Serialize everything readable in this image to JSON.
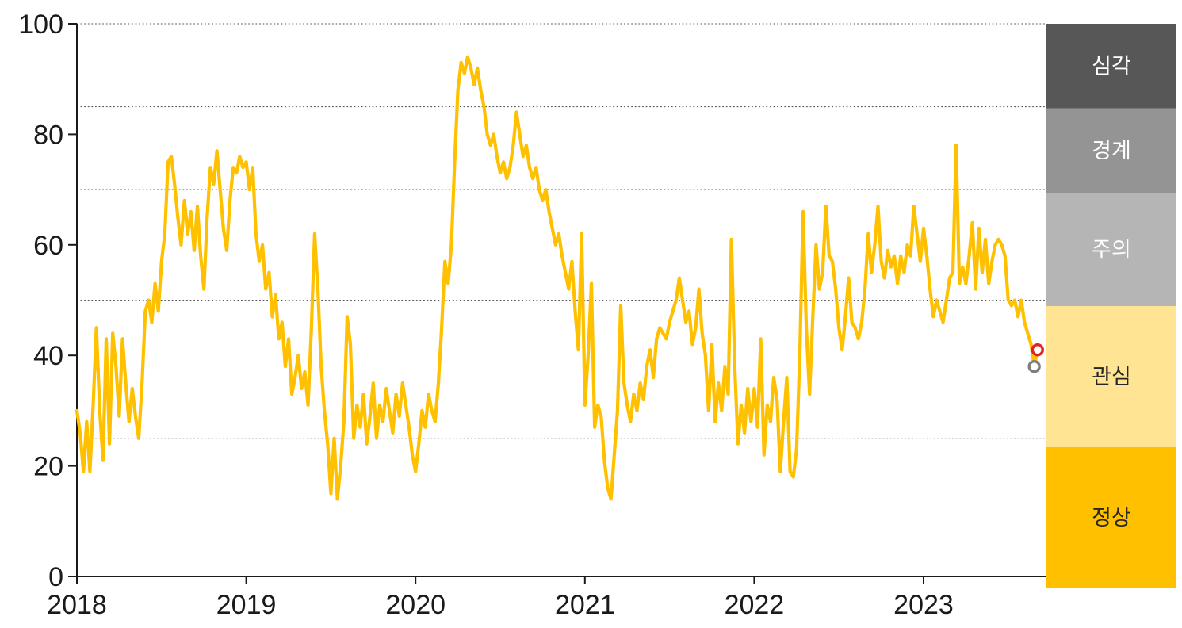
{
  "chart_data": {
    "type": "line",
    "title": "",
    "x_axis": {
      "ticks": [
        "2018",
        "2019",
        "2020",
        "2021",
        "2022",
        "2023"
      ],
      "range_years": [
        2018.0,
        2023.72
      ]
    },
    "y_axis": {
      "ticks": [
        0,
        20,
        40,
        60,
        80,
        100
      ],
      "range": [
        0,
        100
      ]
    },
    "gridline_values": [
      100,
      85,
      70,
      50,
      25
    ],
    "grid_style": "dotted",
    "bands": [
      {
        "key": "serious",
        "label": "심각",
        "range": [
          85,
          100
        ],
        "color": "#575757",
        "label_color": "#ffffff"
      },
      {
        "key": "alert",
        "label": "경계",
        "range": [
          70,
          85
        ],
        "color": "#949494",
        "label_color": "#ffffff"
      },
      {
        "key": "caution",
        "label": "주의",
        "range": [
          50,
          70
        ],
        "color": "#b5b5b5",
        "label_color": "#ffffff"
      },
      {
        "key": "interest",
        "label": "관심",
        "range": [
          25,
          50
        ],
        "color": "#ffe593",
        "label_color": "#262626"
      },
      {
        "key": "normal",
        "label": "정상",
        "range": [
          0,
          25
        ],
        "color": "#ffc000",
        "label_color": "#262626"
      }
    ],
    "series": {
      "name": "weekly-index",
      "color": "#ffc000",
      "start_x": 2018.0,
      "step_years": 0.0192308,
      "values": [
        30,
        26,
        19,
        28,
        19,
        31,
        45,
        30,
        21,
        43,
        24,
        44,
        38,
        29,
        43,
        35,
        28,
        34,
        29,
        25,
        35,
        48,
        50,
        46,
        53,
        48,
        57,
        62,
        75,
        76,
        71,
        65,
        60,
        68,
        62,
        66,
        59,
        67,
        58,
        52,
        65,
        74,
        71,
        77,
        70,
        63,
        59,
        68,
        74,
        73,
        76,
        74,
        75,
        70,
        74,
        62,
        57,
        60,
        52,
        55,
        47,
        51,
        43,
        46,
        38,
        43,
        33,
        36,
        40,
        34,
        37,
        31,
        45,
        62,
        52,
        38,
        30,
        24,
        15,
        25,
        14,
        20,
        28,
        47,
        42,
        25,
        31,
        27,
        33,
        24,
        29,
        35,
        25,
        31,
        28,
        34,
        30,
        26,
        33,
        29,
        35,
        31,
        27,
        22,
        19,
        24,
        30,
        27,
        33,
        30,
        28,
        35,
        45,
        57,
        53,
        60,
        75,
        88,
        93,
        91,
        94,
        92,
        89,
        92,
        88,
        85,
        80,
        78,
        80,
        76,
        73,
        75,
        72,
        74,
        78,
        84,
        80,
        76,
        78,
        74,
        72,
        74,
        70,
        68,
        70,
        66,
        63,
        60,
        62,
        58,
        55,
        52,
        57,
        48,
        41,
        62,
        31,
        40,
        53,
        27,
        31,
        29,
        21,
        16,
        14,
        22,
        30,
        49,
        35,
        31,
        28,
        33,
        30,
        35,
        32,
        38,
        41,
        36,
        43,
        45,
        44,
        43,
        46,
        48,
        50,
        54,
        50,
        46,
        48,
        42,
        45,
        52,
        44,
        40,
        30,
        42,
        28,
        35,
        30,
        38,
        33,
        61,
        38,
        24,
        31,
        26,
        34,
        28,
        34,
        27,
        43,
        22,
        31,
        28,
        36,
        32,
        19,
        28,
        36,
        19,
        18,
        23,
        40,
        66,
        45,
        33,
        47,
        60,
        52,
        55,
        67,
        58,
        57,
        52,
        45,
        41,
        47,
        54,
        46,
        45,
        43,
        46,
        52,
        62,
        55,
        60,
        67,
        57,
        54,
        59,
        56,
        58,
        53,
        58,
        55,
        60,
        58,
        67,
        62,
        57,
        63,
        58,
        52,
        47,
        50,
        48,
        46,
        50,
        54,
        55,
        78,
        53,
        56,
        53,
        58,
        64,
        52,
        63,
        55,
        61,
        53,
        57,
        60,
        61,
        60,
        58,
        50,
        49,
        50,
        47,
        50,
        46,
        44,
        42,
        38,
        41
      ]
    },
    "markers": [
      {
        "key": "previous-point",
        "x": 2023.6538,
        "value": 38,
        "color": "#7f7f7f"
      },
      {
        "key": "latest-point",
        "x": 2023.6731,
        "value": 41,
        "color": "#e02424"
      }
    ]
  }
}
